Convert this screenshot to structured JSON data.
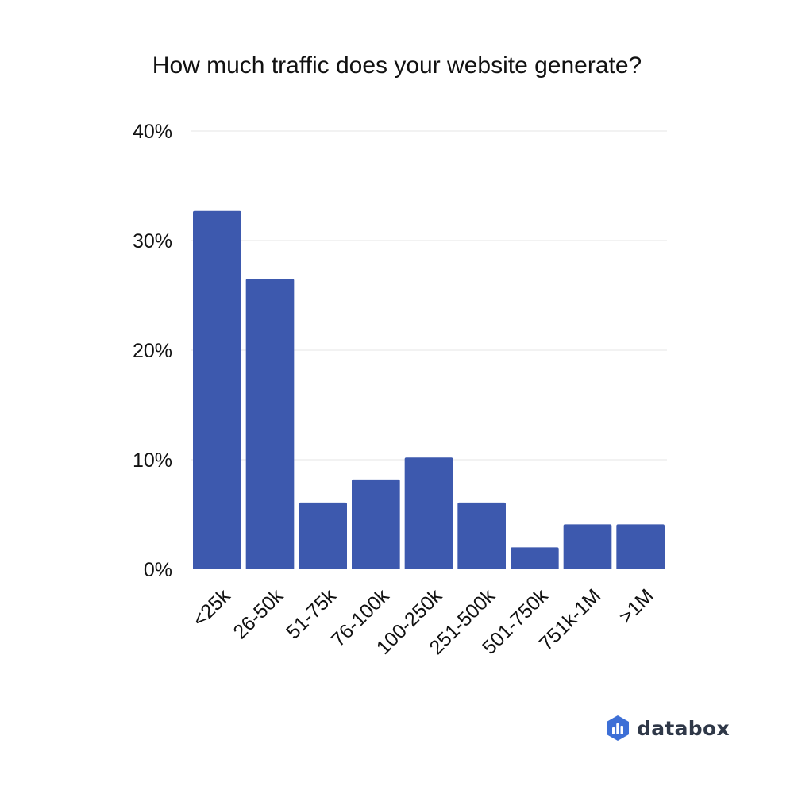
{
  "colors": {
    "bar": "#3d59ae",
    "grid": "#e6e6e6",
    "text": "#111111",
    "logo_dark": "#1c3f8c",
    "logo_mid": "#3d6fd6",
    "logo_light": "#6fa0f0"
  },
  "brand": {
    "name": "databox",
    "icon": "databox-logo-icon"
  },
  "chart_data": {
    "type": "bar",
    "title": "How much traffic does your website generate?",
    "xlabel": "",
    "ylabel": "",
    "categories": [
      "<25k",
      "26-50k",
      "51-75k",
      "76-100k",
      "100-250k",
      "251-500k",
      "501-750k",
      "751k-1M",
      ">1M"
    ],
    "values": [
      32.7,
      26.5,
      6.1,
      8.2,
      10.2,
      6.1,
      2.0,
      4.1,
      4.1
    ],
    "ylim": [
      0,
      40
    ],
    "yticks": [
      0,
      10,
      20,
      30,
      40
    ],
    "ytick_labels": [
      "0%",
      "10%",
      "20%",
      "30%",
      "40%"
    ],
    "grid": true,
    "legend": "none"
  }
}
